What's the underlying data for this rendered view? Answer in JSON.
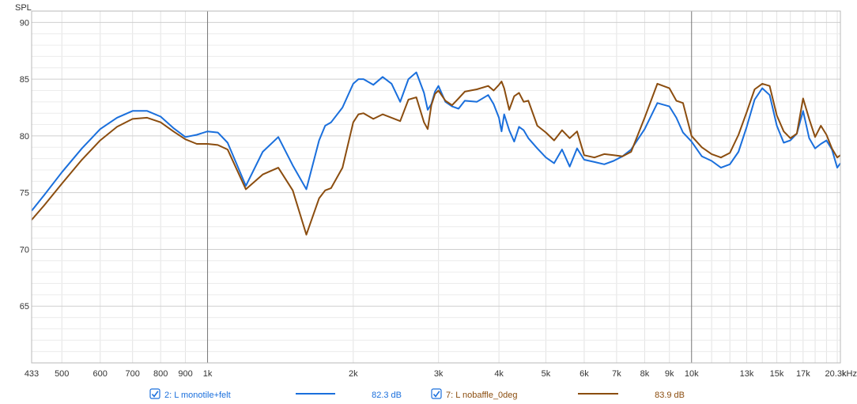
{
  "chart_data": {
    "type": "line",
    "ylabel": "SPL",
    "xunit": "kHz",
    "xscale": "log",
    "xlim": [
      433,
      20300
    ],
    "ylim": [
      60,
      91
    ],
    "y_ticks": [
      {
        "value": 65,
        "label": "65"
      },
      {
        "value": 70,
        "label": "70"
      },
      {
        "value": 75,
        "label": "75"
      },
      {
        "value": 80,
        "label": "80"
      },
      {
        "value": 85,
        "label": "85"
      },
      {
        "value": 90,
        "label": "90"
      }
    ],
    "x_ticks": [
      {
        "value": 433,
        "label": "433"
      },
      {
        "value": 500,
        "label": "500"
      },
      {
        "value": 600,
        "label": "600"
      },
      {
        "value": 700,
        "label": "700"
      },
      {
        "value": 800,
        "label": "800"
      },
      {
        "value": 900,
        "label": "900"
      },
      {
        "value": 1000,
        "label": "1k"
      },
      {
        "value": 2000,
        "label": "2k"
      },
      {
        "value": 3000,
        "label": "3k"
      },
      {
        "value": 4000,
        "label": "4k"
      },
      {
        "value": 5000,
        "label": "5k"
      },
      {
        "value": 6000,
        "label": "6k"
      },
      {
        "value": 7000,
        "label": "7k"
      },
      {
        "value": 8000,
        "label": "8k"
      },
      {
        "value": 9000,
        "label": "9k"
      },
      {
        "value": 10000,
        "label": "10k"
      },
      {
        "value": 13000,
        "label": "13k"
      },
      {
        "value": 15000,
        "label": "15k"
      },
      {
        "value": 17000,
        "label": "17k"
      },
      {
        "value": 20300,
        "label": "20.3k"
      }
    ],
    "major_gridlines_x": [
      1000,
      10000
    ],
    "grid": true,
    "legend_placement": "bottom",
    "series": [
      {
        "name": "2: L monotile+felt",
        "color": "#1a6fdc",
        "checked": true,
        "value_label": "82.3 dB",
        "x": [
          433,
          460,
          500,
          550,
          600,
          650,
          700,
          750,
          800,
          850,
          900,
          950,
          1000,
          1050,
          1100,
          1200,
          1300,
          1400,
          1500,
          1600,
          1700,
          1750,
          1800,
          1900,
          2000,
          2050,
          2100,
          2200,
          2300,
          2400,
          2500,
          2600,
          2700,
          2800,
          2850,
          2900,
          2950,
          3000,
          3100,
          3200,
          3300,
          3400,
          3600,
          3800,
          3900,
          4000,
          4050,
          4100,
          4200,
          4300,
          4400,
          4500,
          4600,
          4800,
          5000,
          5200,
          5400,
          5600,
          5800,
          6000,
          6300,
          6600,
          6900,
          7200,
          7500,
          8000,
          8500,
          9000,
          9300,
          9600,
          10000,
          10500,
          11000,
          11500,
          12000,
          12500,
          13000,
          13500,
          14000,
          14500,
          15000,
          15500,
          16000,
          16500,
          17000,
          17500,
          18000,
          18500,
          19000,
          19500,
          20000,
          20300
        ],
        "y": [
          73.4,
          74.8,
          76.8,
          78.9,
          80.6,
          81.6,
          82.2,
          82.2,
          81.7,
          80.7,
          79.9,
          80.1,
          80.4,
          80.3,
          79.4,
          75.6,
          78.6,
          79.9,
          77.4,
          75.3,
          79.6,
          80.9,
          81.2,
          82.5,
          84.6,
          85.0,
          85.0,
          84.5,
          85.2,
          84.6,
          83.0,
          85.0,
          85.6,
          83.8,
          82.3,
          82.8,
          83.9,
          84.4,
          83.0,
          82.6,
          82.4,
          83.1,
          83.0,
          83.6,
          82.8,
          81.6,
          80.4,
          81.9,
          80.5,
          79.5,
          80.8,
          80.5,
          79.8,
          78.9,
          78.1,
          77.6,
          78.8,
          77.3,
          78.9,
          77.9,
          77.7,
          77.5,
          77.8,
          78.2,
          78.8,
          80.6,
          82.9,
          82.6,
          81.6,
          80.3,
          79.5,
          78.2,
          77.8,
          77.2,
          77.5,
          78.6,
          80.8,
          83.2,
          84.2,
          83.6,
          80.9,
          79.4,
          79.6,
          80.2,
          82.2,
          79.8,
          78.9,
          79.3,
          79.6,
          78.8,
          77.2,
          77.6
        ]
      },
      {
        "name": "7: L nobaffle_0deg",
        "color": "#8b4d0f",
        "checked": true,
        "value_label": "83.9 dB",
        "x": [
          433,
          460,
          500,
          550,
          600,
          650,
          700,
          750,
          800,
          850,
          900,
          950,
          1000,
          1050,
          1100,
          1200,
          1300,
          1400,
          1500,
          1600,
          1700,
          1750,
          1800,
          1900,
          2000,
          2050,
          2100,
          2200,
          2300,
          2400,
          2500,
          2600,
          2700,
          2800,
          2850,
          2900,
          2950,
          3000,
          3100,
          3200,
          3300,
          3400,
          3600,
          3800,
          3900,
          4000,
          4050,
          4100,
          4200,
          4300,
          4400,
          4500,
          4600,
          4800,
          5000,
          5200,
          5400,
          5600,
          5800,
          6000,
          6300,
          6600,
          6900,
          7200,
          7500,
          8000,
          8500,
          9000,
          9300,
          9600,
          10000,
          10500,
          11000,
          11500,
          12000,
          12500,
          13000,
          13500,
          14000,
          14500,
          15000,
          15500,
          16000,
          16500,
          17000,
          17500,
          18000,
          18500,
          19000,
          19500,
          20000,
          20300
        ],
        "y": [
          72.6,
          73.9,
          75.8,
          77.9,
          79.6,
          80.8,
          81.5,
          81.6,
          81.2,
          80.4,
          79.7,
          79.3,
          79.3,
          79.2,
          78.8,
          75.3,
          76.6,
          77.2,
          75.2,
          71.3,
          74.5,
          75.2,
          75.4,
          77.2,
          81.2,
          81.9,
          82.0,
          81.5,
          81.9,
          81.6,
          81.3,
          83.2,
          83.4,
          81.2,
          80.6,
          82.7,
          83.7,
          84.0,
          83.1,
          82.7,
          83.3,
          83.9,
          84.1,
          84.4,
          84.0,
          84.5,
          84.8,
          84.2,
          82.3,
          83.5,
          83.8,
          83.0,
          83.1,
          80.9,
          80.3,
          79.6,
          80.5,
          79.8,
          80.4,
          78.3,
          78.1,
          78.4,
          78.3,
          78.2,
          78.6,
          81.6,
          84.6,
          84.2,
          83.1,
          82.9,
          80.0,
          79.0,
          78.4,
          78.1,
          78.5,
          80.1,
          82.1,
          84.1,
          84.6,
          84.4,
          81.8,
          80.4,
          79.8,
          80.2,
          83.3,
          81.5,
          79.9,
          80.9,
          80.1,
          78.9,
          78.1,
          78.3
        ]
      }
    ]
  }
}
